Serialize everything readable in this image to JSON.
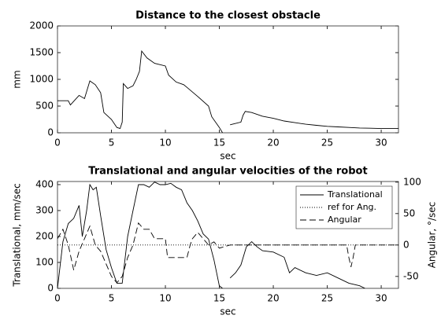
{
  "chart_data": [
    {
      "type": "line",
      "title": "Distance to the closest obstacle",
      "xlabel": "sec",
      "ylabel": "mm",
      "xlim": [
        0,
        31.6
      ],
      "ylim": [
        0,
        2000
      ],
      "xticks": [
        0,
        5,
        10,
        15,
        20,
        25,
        30
      ],
      "yticks": [
        0,
        500,
        1000,
        1500,
        2000
      ],
      "grid": false,
      "series": [
        {
          "name": "Distance",
          "color": "#000000",
          "dash": "solid",
          "x": [
            0,
            1,
            1.2,
            2,
            2.5,
            3,
            3.5,
            4,
            4.3,
            5,
            5.5,
            5.8,
            6,
            6.1,
            6.5,
            7,
            7.3,
            7.6,
            7.8,
            8.3,
            9,
            10,
            10.3,
            11,
            11.7,
            12,
            13,
            14,
            14.3,
            15,
            15.3,
            15.6,
            16,
            17,
            17.2,
            17.4,
            18,
            19,
            20,
            21,
            22,
            23,
            24,
            25,
            26,
            27,
            28,
            29,
            30,
            31.6
          ],
          "values": [
            600,
            600,
            520,
            700,
            640,
            970,
            900,
            750,
            380,
            250,
            100,
            80,
            200,
            920,
            830,
            880,
            1000,
            1150,
            1530,
            1400,
            1300,
            1250,
            1080,
            950,
            900,
            850,
            680,
            500,
            300,
            100,
            0,
            null,
            150,
            200,
            330,
            400,
            380,
            310,
            270,
            220,
            190,
            160,
            140,
            120,
            110,
            100,
            90,
            85,
            80,
            80
          ]
        }
      ]
    },
    {
      "type": "line",
      "title": "Translational and angular velocities of the robot",
      "xlabel": "sec",
      "ylabel": "Translational, mm/sec",
      "y2label": "Angular, °/sec",
      "xlim": [
        0,
        31.6
      ],
      "ylim": [
        0,
        412
      ],
      "y2lim": [
        -69,
        101
      ],
      "xticks": [
        0,
        5,
        10,
        15,
        20,
        25,
        30
      ],
      "yticks": [
        0,
        100,
        200,
        300,
        400
      ],
      "y2ticks": [
        -50,
        0,
        50,
        100
      ],
      "grid": false,
      "legend": "northeast",
      "series": [
        {
          "name": "Translational",
          "color": "#000000",
          "dash": "solid",
          "x": [
            0,
            0.5,
            1,
            1.5,
            2,
            2.3,
            2.7,
            3,
            3.3,
            3.6,
            4,
            4.5,
            5,
            5.5,
            6,
            6.5,
            7,
            7.5,
            8,
            8.5,
            9,
            9.5,
            10,
            10.5,
            11,
            11.5,
            12,
            12.5,
            13,
            13.5,
            14,
            14.5,
            15,
            15.3,
            15.6,
            16,
            16.5,
            17,
            17.5,
            18,
            18.5,
            19,
            20,
            21,
            21.5,
            22,
            23,
            24,
            25,
            26,
            27,
            28,
            28.5
          ],
          "values": [
            0,
            180,
            250,
            270,
            320,
            200,
            300,
            400,
            380,
            390,
            280,
            150,
            80,
            20,
            20,
            200,
            300,
            400,
            400,
            390,
            410,
            400,
            400,
            405,
            390,
            380,
            330,
            300,
            260,
            210,
            190,
            110,
            10,
            0,
            null,
            40,
            60,
            90,
            160,
            180,
            160,
            145,
            140,
            120,
            60,
            80,
            60,
            50,
            60,
            40,
            20,
            10,
            0
          ]
        },
        {
          "name": "ref for Ang.",
          "color": "#000000",
          "dash": "dotted",
          "axis": "y2",
          "x": [
            0,
            31.6
          ],
          "values": [
            0,
            0
          ]
        },
        {
          "name": "Angular",
          "color": "#000000",
          "dash": "dashed",
          "axis": "y2",
          "x": [
            0,
            0.5,
            1,
            1.5,
            2,
            2.5,
            3,
            3.5,
            4,
            4.5,
            5,
            5.5,
            6,
            6.5,
            7,
            7.5,
            8,
            8.5,
            9,
            10,
            10.2,
            11,
            12,
            12.3,
            12.5,
            13,
            13.5,
            14,
            14.5,
            15,
            16,
            26.8,
            27,
            27.2,
            27.4,
            27.6,
            31.6
          ],
          "values": [
            10,
            25,
            0,
            -40,
            -10,
            10,
            30,
            0,
            -10,
            -30,
            -50,
            -60,
            -50,
            -20,
            0,
            35,
            25,
            25,
            10,
            10,
            -20,
            -20,
            -20,
            0,
            10,
            20,
            10,
            0,
            5,
            -5,
            0,
            0,
            -20,
            -35,
            -20,
            0,
            0
          ]
        }
      ]
    }
  ]
}
